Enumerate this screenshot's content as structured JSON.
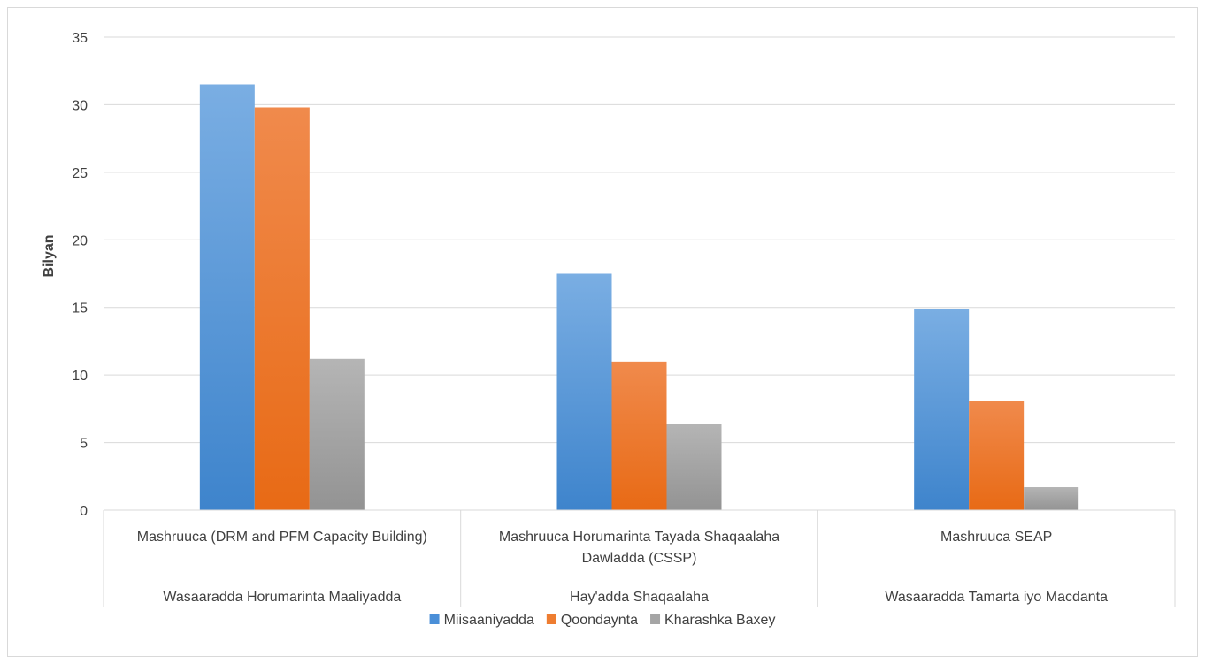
{
  "chart_data": {
    "type": "bar",
    "title": "",
    "xlabel": "",
    "ylabel": "Bilyan",
    "ylim": [
      0,
      35
    ],
    "yticks": [
      0,
      5,
      10,
      15,
      20,
      25,
      30,
      35
    ],
    "grid": true,
    "legend_position": "bottom",
    "categories": [
      {
        "project": [
          "Mashruuca (DRM and PFM Capacity Building)"
        ],
        "ministry": "Wasaaradda Horumarinta Maaliyadda"
      },
      {
        "project": [
          "Mashruuca Horumarinta Tayada Shaqaalaha",
          "Dawladda (CSSP)"
        ],
        "ministry": "Hay'adda Shaqaalaha"
      },
      {
        "project": [
          "Mashruuca SEAP"
        ],
        "ministry": "Wasaaradda Tamarta iyo Macdanta"
      }
    ],
    "series": [
      {
        "name": "Miisaaniyadda",
        "color": "#4a8fd8",
        "values": [
          31.5,
          17.5,
          14.9
        ]
      },
      {
        "name": "Qoondaynta",
        "color": "#ee7d31",
        "values": [
          29.8,
          11.0,
          8.1
        ]
      },
      {
        "name": "Kharashka Baxey",
        "color": "#a5a5a5",
        "values": [
          11.2,
          6.4,
          1.7
        ]
      }
    ]
  }
}
